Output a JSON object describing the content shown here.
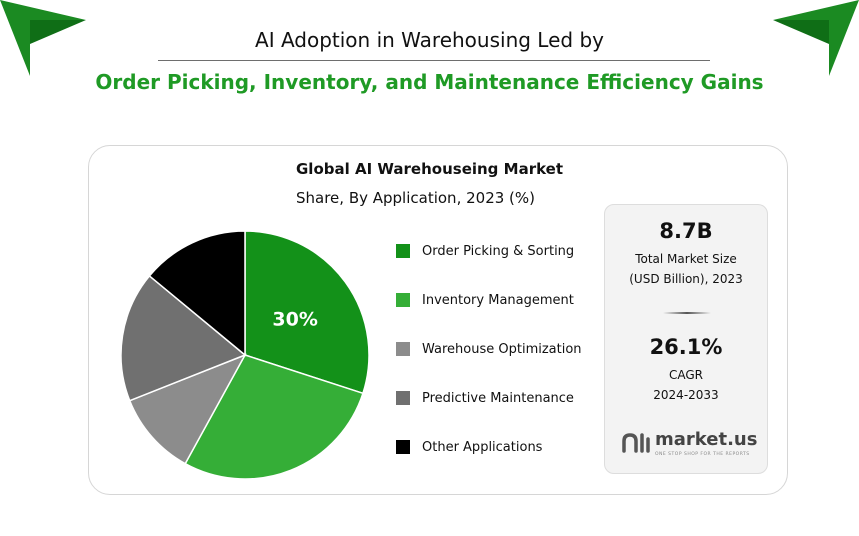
{
  "header": {
    "title_line1": "AI Adoption in Warehousing Led by",
    "title_line2": "Order Picking, Inventory, and Maintenance Efficiency Gains"
  },
  "colors": {
    "brand_green": "#1f9a25",
    "corner_green": "#1b8a22"
  },
  "stats": {
    "market_size_value": "8.7B",
    "market_size_label_line1": "Total Market Size",
    "market_size_label_line2": "(USD Billion), 2023",
    "cagr_value": "26.1%",
    "cagr_label_line1": "CAGR",
    "cagr_label_line2": "2024-2033"
  },
  "logo": {
    "name": "market.us",
    "tagline": "one stop shop for the reports",
    "icon": "market-us-logo-icon"
  },
  "chart_data": {
    "type": "pie",
    "title": "Global AI Warehouseing Market",
    "subtitle": "Share, By Application, 2023 (%)",
    "legend_position": "right",
    "categories": [
      "Order Picking & Sorting",
      "Inventory Management",
      "Warehouse Optimization",
      "Predictive Maintenance",
      "Other Applications"
    ],
    "values": [
      30,
      28,
      11,
      17,
      14
    ],
    "colors": [
      "#139119",
      "#35ae37",
      "#8c8c8c",
      "#707070",
      "#000000"
    ],
    "data_labels": [
      "30%",
      "",
      "",
      "",
      ""
    ]
  }
}
